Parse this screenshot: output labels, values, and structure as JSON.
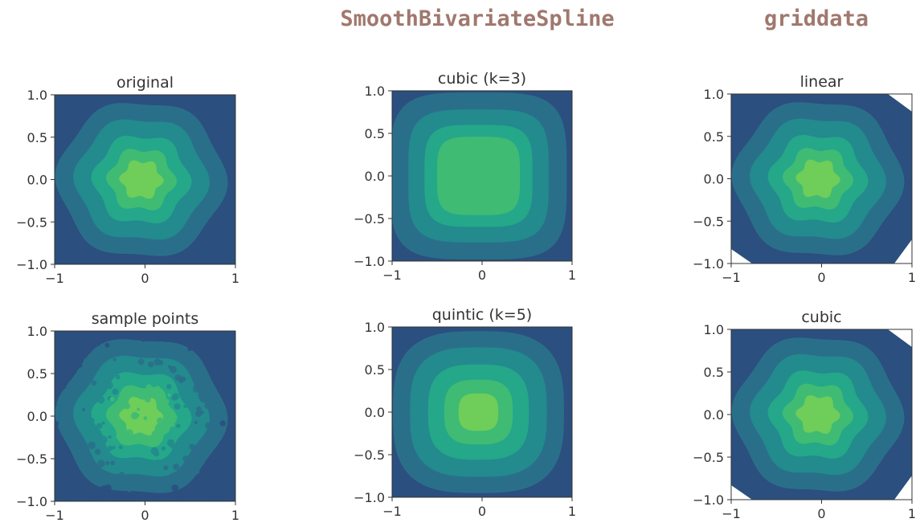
{
  "group_titles": {
    "smooth": "SmoothBivariateSpline",
    "griddata": "griddata"
  },
  "colors": {
    "levels": [
      "#2b4f7e",
      "#2a6f8a",
      "#238a8d",
      "#25a78a",
      "#3fbb74",
      "#6fcd59",
      "#a8d938"
    ],
    "background": "#ffffff",
    "text": "#333333",
    "group_title": "#a0786e"
  },
  "chart_data": [
    {
      "id": "original",
      "type": "heatmap",
      "style": "filled-contour",
      "title": "original",
      "xlim": [
        -1,
        1
      ],
      "ylim": [
        -1,
        1
      ],
      "xticks": [
        "−1",
        "0",
        "1"
      ],
      "yticks": [
        "1.0",
        "0.5",
        "0.0",
        "−0.5",
        "−1.0"
      ],
      "levels": [
        {
          "r": 1.45,
          "amp": 0
        },
        {
          "r": 0.92,
          "amp": 0.04
        },
        {
          "r": 0.72,
          "amp": 0.05
        },
        {
          "r": 0.52,
          "amp": 0.07
        },
        {
          "r": 0.36,
          "amp": 0.09
        },
        {
          "r": 0.22,
          "amp": 0.12
        }
      ],
      "lobes": 6,
      "sample_points": false,
      "hull_clip": false
    },
    {
      "id": "sample-points",
      "type": "scatter",
      "style": "filled-contour-with-samples",
      "title": "sample points",
      "xlim": [
        -1,
        1
      ],
      "ylim": [
        -1,
        1
      ],
      "xticks": [
        "−1",
        "0",
        "1"
      ],
      "yticks": [
        "1.0",
        "0.5",
        "0.0",
        "−0.5",
        "−1.0"
      ],
      "levels": [
        {
          "r": 1.45,
          "amp": 0
        },
        {
          "r": 0.92,
          "amp": 0.04
        },
        {
          "r": 0.72,
          "amp": 0.05
        },
        {
          "r": 0.52,
          "amp": 0.07
        },
        {
          "r": 0.36,
          "amp": 0.09
        },
        {
          "r": 0.22,
          "amp": 0.12
        }
      ],
      "lobes": 6,
      "sample_points": true,
      "hull_clip": false
    },
    {
      "id": "cubic-k3",
      "type": "heatmap",
      "style": "filled-contour",
      "title": "cubic (k=3)",
      "xlim": [
        -1,
        1
      ],
      "ylim": [
        -1,
        1
      ],
      "xticks": [
        "−1",
        "0",
        "1"
      ],
      "yticks": [
        "1.0",
        "0.5",
        "0.0",
        "−0.5",
        "−1.0"
      ],
      "levels": [
        {
          "r": 1.45,
          "amp": 0
        },
        {
          "r": 0.98,
          "amp": 0
        },
        {
          "r": 0.78,
          "amp": 0
        },
        {
          "r": 0.6,
          "amp": 0
        },
        {
          "r": 0.46,
          "amp": 0
        }
      ],
      "squareness": 4,
      "lobes": 0,
      "sample_points": false,
      "hull_clip": false
    },
    {
      "id": "quintic-k5",
      "type": "heatmap",
      "style": "filled-contour",
      "title": "quintic (k=5)",
      "xlim": [
        -1,
        1
      ],
      "ylim": [
        -1,
        1
      ],
      "xticks": [
        "−1",
        "0",
        "1"
      ],
      "yticks": [
        "1.0",
        "0.5",
        "0.0",
        "−0.5",
        "−1.0"
      ],
      "levels": [
        {
          "r": 1.45,
          "amp": 0
        },
        {
          "r": 0.95,
          "amp": 0
        },
        {
          "r": 0.76,
          "amp": 0
        },
        {
          "r": 0.56,
          "amp": 0
        },
        {
          "r": 0.38,
          "amp": 0
        },
        {
          "r": 0.22,
          "amp": 0
        }
      ],
      "squareness": 3,
      "lobes": 0,
      "sample_points": false,
      "hull_clip": false
    },
    {
      "id": "linear",
      "type": "heatmap",
      "style": "filled-contour",
      "title": "linear",
      "xlim": [
        -1,
        1
      ],
      "ylim": [
        -1,
        1
      ],
      "xticks": [
        "−1",
        "0",
        "1"
      ],
      "yticks": [
        "1.0",
        "0.5",
        "0.0",
        "−0.5",
        "−1.0"
      ],
      "levels": [
        {
          "r": 1.45,
          "amp": 0
        },
        {
          "r": 0.92,
          "amp": 0.04
        },
        {
          "r": 0.72,
          "amp": 0.05
        },
        {
          "r": 0.52,
          "amp": 0.07
        },
        {
          "r": 0.36,
          "amp": 0.09
        },
        {
          "r": 0.22,
          "amp": 0.12
        }
      ],
      "lobes": 6,
      "sample_points": false,
      "hull_clip": true
    },
    {
      "id": "cubic",
      "type": "heatmap",
      "style": "filled-contour",
      "title": "cubic",
      "xlim": [
        -1,
        1
      ],
      "ylim": [
        -1,
        1
      ],
      "xticks": [
        "−1",
        "0",
        "1"
      ],
      "yticks": [
        "1.0",
        "0.5",
        "0.0",
        "−0.5",
        "−1.0"
      ],
      "levels": [
        {
          "r": 1.45,
          "amp": 0
        },
        {
          "r": 0.92,
          "amp": 0.04
        },
        {
          "r": 0.72,
          "amp": 0.05
        },
        {
          "r": 0.52,
          "amp": 0.07
        },
        {
          "r": 0.36,
          "amp": 0.09
        },
        {
          "r": 0.22,
          "amp": 0.12
        }
      ],
      "lobes": 6,
      "sample_points": false,
      "hull_clip": true
    }
  ]
}
